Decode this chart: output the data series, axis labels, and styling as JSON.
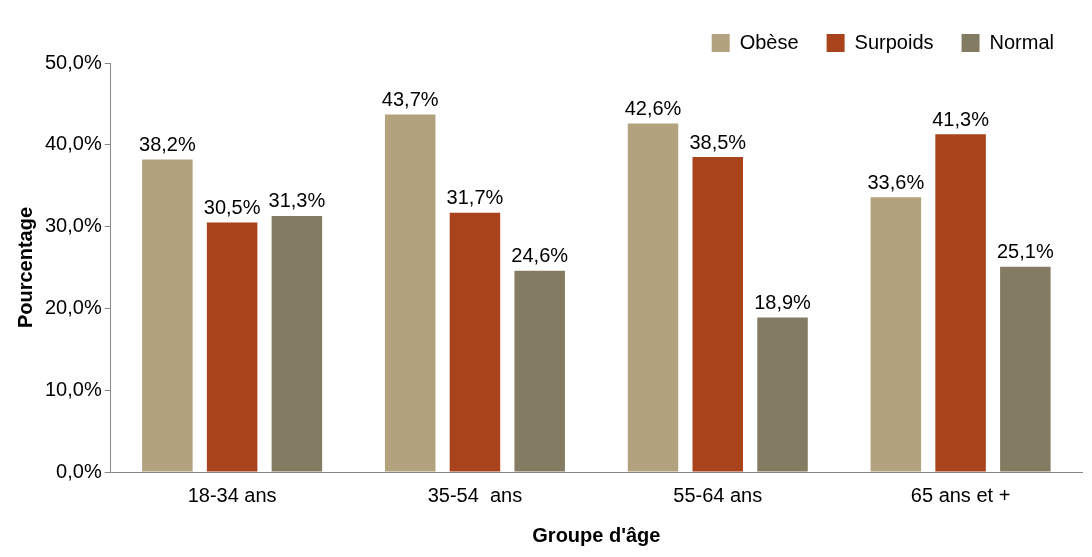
{
  "chart_data": {
    "type": "bar",
    "xlabel": "Groupe d'âge",
    "ylabel": "Pourcentage",
    "categories": [
      "18-34 ans",
      "35-54  ans",
      "55-64 ans",
      "65 ans et +"
    ],
    "series": [
      {
        "name": "Obèse",
        "color": "#b3a27e",
        "values": [
          38.2,
          43.7,
          42.6,
          33.6
        ],
        "value_labels": [
          "38,2%",
          "43,7%",
          "42,6%",
          "33,6%"
        ]
      },
      {
        "name": "Surpoids",
        "color": "#a9431b",
        "values": [
          30.5,
          31.7,
          38.5,
          41.3
        ],
        "value_labels": [
          "30,5%",
          "31,7%",
          "38,5%",
          "41,3%"
        ]
      },
      {
        "name": "Normal",
        "color": "#847c62",
        "values": [
          31.3,
          24.6,
          18.9,
          25.1
        ],
        "value_labels": [
          "31,3%",
          "24,6%",
          "18,9%",
          "25,1%"
        ]
      }
    ],
    "ylim": [
      0,
      50
    ],
    "yticks": [
      {
        "value": 0,
        "label": "0,0%"
      },
      {
        "value": 10,
        "label": "10,0%"
      },
      {
        "value": 20,
        "label": "20,0%"
      },
      {
        "value": 30,
        "label": "30,0%"
      },
      {
        "value": 40,
        "label": "40,0%"
      },
      {
        "value": 50,
        "label": "50,0%"
      }
    ],
    "grid": false,
    "legend": "top right"
  }
}
